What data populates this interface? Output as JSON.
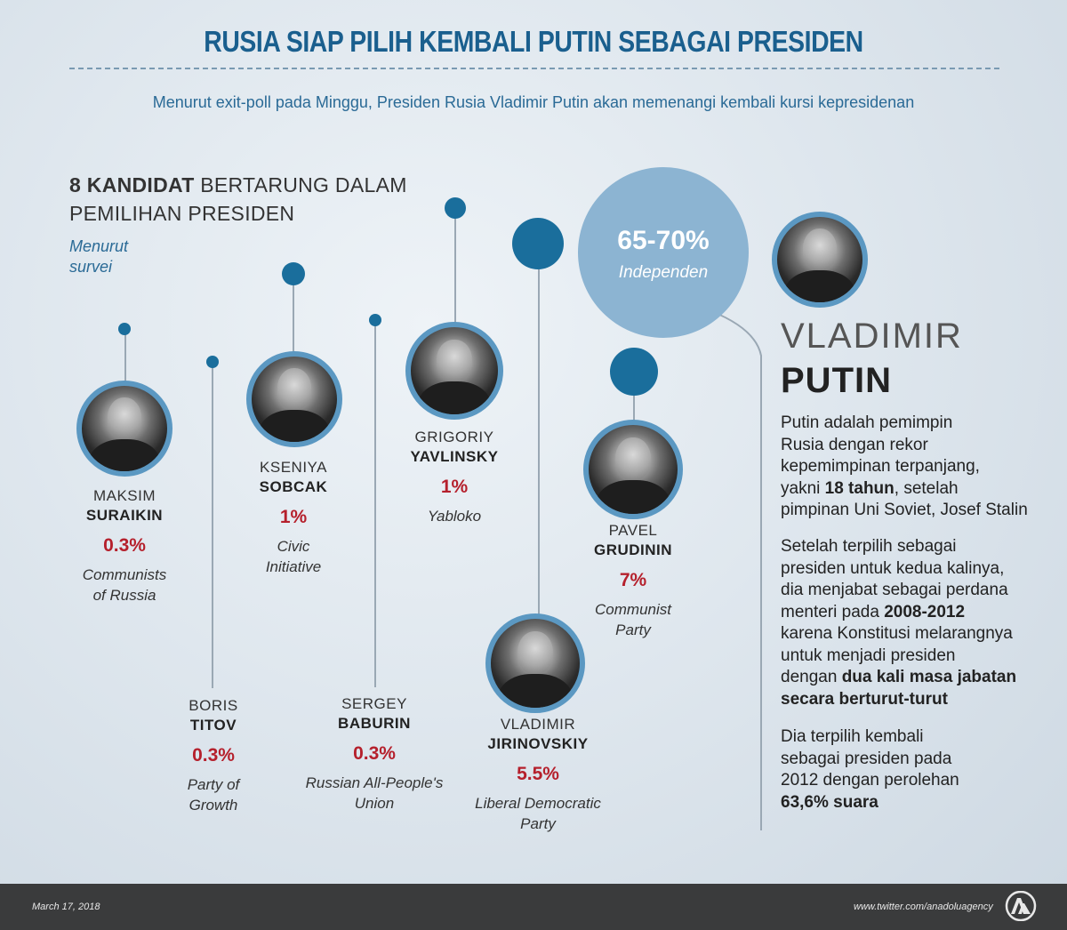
{
  "header": {
    "title": "RUSIA SIAP PILIH KEMBALI PUTIN SEBAGAI PRESIDEN",
    "subtitle": "Menurut exit-poll pada Minggu, Presiden Rusia Vladimir Putin akan memenangi kembali kursi kepresidenan"
  },
  "section": {
    "heading_bold": "8 KANDIDAT",
    "heading_rest1": " BERTARUNG DALAM",
    "heading_rest2": "PEMILIHAN PRESIDEN",
    "survey_line1": "Menurut",
    "survey_line2": "survei"
  },
  "candidates": {
    "suraikin": {
      "first": "MAKSIM",
      "last": "SURAIKIN",
      "percent": "0.3%",
      "party1": "Communists",
      "party2": "of Russia",
      "percent_value": 0.3
    },
    "titov": {
      "first": "BORIS",
      "last": "TITOV",
      "percent": "0.3%",
      "party1": "Party of",
      "party2": "Growth",
      "percent_value": 0.3
    },
    "sobcak": {
      "first": "KSENIYA",
      "last": "SOBCAK",
      "percent": "1%",
      "party1": "Civic",
      "party2": "Initiative",
      "percent_value": 1
    },
    "baburin": {
      "first": "SERGEY",
      "last": "BABURIN",
      "percent": "0.3%",
      "party1": "Russian All-People's",
      "party2": "Union",
      "percent_value": 0.3
    },
    "yavlinsky": {
      "first": "GRIGORIY",
      "last": "YAVLINSKY",
      "percent": "1%",
      "party1": "Yabloko",
      "percent_value": 1
    },
    "jirinovskiy": {
      "first": "VLADIMIR",
      "last": "JIRINOVSKIY",
      "percent": "5.5%",
      "party1": "Liberal Democratic",
      "party2": "Party",
      "percent_value": 5.5
    },
    "grudinin": {
      "first": "PAVEL",
      "last": "GRUDININ",
      "percent": "7%",
      "party1": "Communist",
      "party2": "Party",
      "percent_value": 7
    }
  },
  "putin": {
    "percent": "65-70%",
    "party": "Independen",
    "first": "VLADIMIR",
    "last": "PUTIN",
    "p1": [
      "Putin adalah pemimpin",
      "Rusia dengan rekor",
      "kepemimpinan terpanjang,"
    ],
    "p1_l4a": "yakni ",
    "p1_l4b": "18 tahun",
    "p1_l4c": ", setelah",
    "p1_l5": "pimpinan Uni Soviet, Josef Stalin",
    "p2": [
      "Setelah terpilih sebagai",
      "presiden untuk kedua kalinya,",
      "dia menjabat sebagai perdana"
    ],
    "p2_l4a": "menteri pada ",
    "p2_l4b": "2008-2012",
    "p2_l5": "karena Konstitusi melarangnya",
    "p2_l6": "untuk menjadi presiden",
    "p2_l7a": "dengan ",
    "p2_l7b": "dua kali masa jabatan",
    "p2_l8": "secara berturut-turut",
    "p3": [
      "Dia terpilih kembali",
      "sebagai presiden pada",
      "2012 dengan perolehan"
    ],
    "p3_l4": "63,6% suara"
  },
  "footer": {
    "date": "March 17, 2018",
    "twitter": "www.twitter.com/anadoluagency"
  },
  "colors": {
    "accent": "#1a5f8e",
    "dot": "#1a6e9c",
    "ring": "#5b98c2",
    "percent": "#b5202c",
    "bubble": "#8cb4d2"
  }
}
